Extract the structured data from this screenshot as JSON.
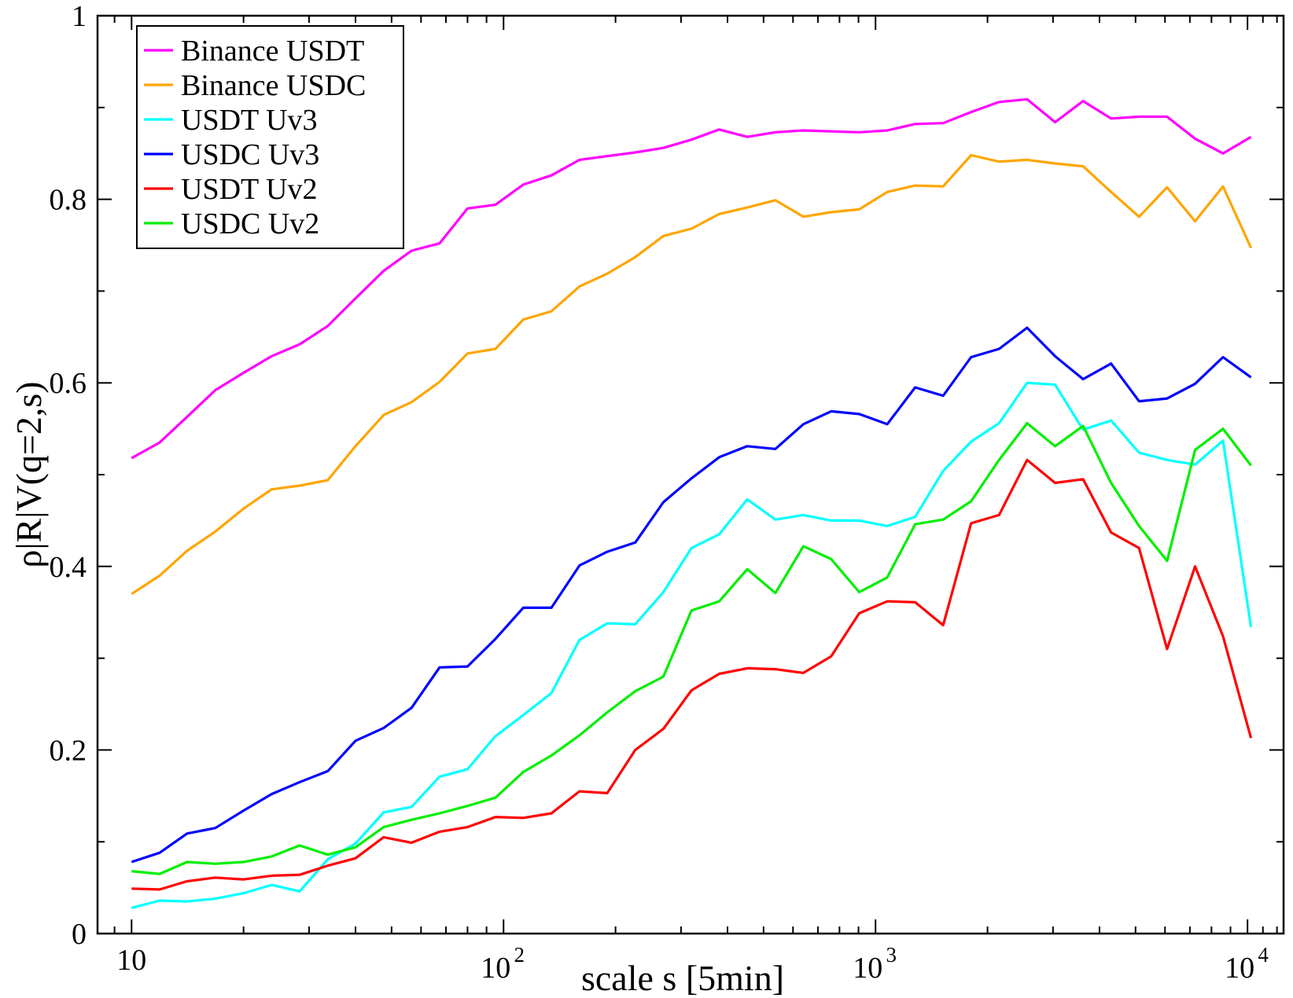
{
  "chart_data": {
    "type": "line",
    "title": "",
    "xlabel": "scale s [5min]",
    "ylabel": "ρ|R|V(q=2,s)",
    "xscale": "log",
    "xlim": [
      8.1,
      12500
    ],
    "ylim": [
      0,
      1
    ],
    "grid": false,
    "legend_position": "top-left",
    "x_ticks": [
      {
        "value": 10,
        "label": "10"
      },
      {
        "value": 100,
        "label": "10",
        "sup": "2"
      },
      {
        "value": 1000,
        "label": "10",
        "sup": "3"
      },
      {
        "value": 10000,
        "label": "10",
        "sup": "4"
      }
    ],
    "y_ticks": [
      {
        "value": 0,
        "label": "0"
      },
      {
        "value": 0.2,
        "label": "0.2"
      },
      {
        "value": 0.4,
        "label": "0.4"
      },
      {
        "value": 0.6,
        "label": "0.6"
      },
      {
        "value": 0.8,
        "label": "0.8"
      },
      {
        "value": 1,
        "label": "1"
      }
    ],
    "x": [
      10,
      11.9,
      14.1,
      16.8,
      20,
      23.8,
      28.3,
      33.7,
      40,
      47.6,
      56.6,
      67.3,
      80,
      95.1,
      113,
      134.5,
      160,
      190,
      226,
      269,
      320,
      380,
      452,
      538,
      640,
      760,
      904,
      1075,
      1278,
      1520,
      1807,
      2149,
      2555,
      3039,
      3614,
      4297,
      5110,
      6077,
      7227,
      8594,
      10220
    ],
    "series": [
      {
        "name": "Binance USDT",
        "color": "#ff00ff",
        "values": [
          0.518,
          0.535,
          0.563,
          0.592,
          0.611,
          0.629,
          0.642,
          0.662,
          0.692,
          0.722,
          0.744,
          0.752,
          0.79,
          0.794,
          0.816,
          0.826,
          0.843,
          0.847,
          0.851,
          0.856,
          0.865,
          0.876,
          0.868,
          0.873,
          0.875,
          0.874,
          0.873,
          0.875,
          0.882,
          0.883,
          0.895,
          0.906,
          0.909,
          0.884,
          0.907,
          0.888,
          0.89,
          0.89,
          0.866,
          0.85,
          0.868
        ]
      },
      {
        "name": "Binance USDC",
        "color": "#ffa500",
        "values": [
          0.37,
          0.39,
          0.417,
          0.438,
          0.463,
          0.484,
          0.488,
          0.494,
          0.531,
          0.565,
          0.579,
          0.601,
          0.632,
          0.637,
          0.669,
          0.678,
          0.705,
          0.719,
          0.737,
          0.76,
          0.768,
          0.784,
          0.791,
          0.799,
          0.781,
          0.786,
          0.789,
          0.808,
          0.815,
          0.814,
          0.848,
          0.841,
          0.843,
          0.839,
          0.836,
          0.808,
          0.781,
          0.813,
          0.776,
          0.814,
          0.747
        ]
      },
      {
        "name": "USDT Uv3",
        "color": "#00ffff",
        "values": [
          0.028,
          0.036,
          0.035,
          0.038,
          0.044,
          0.053,
          0.046,
          0.081,
          0.098,
          0.132,
          0.138,
          0.171,
          0.179,
          0.215,
          0.238,
          0.262,
          0.32,
          0.338,
          0.337,
          0.372,
          0.42,
          0.435,
          0.473,
          0.451,
          0.456,
          0.45,
          0.45,
          0.444,
          0.454,
          0.504,
          0.536,
          0.556,
          0.6,
          0.598,
          0.549,
          0.559,
          0.524,
          0.516,
          0.511,
          0.537,
          0.334
        ]
      },
      {
        "name": "USDC Uv3",
        "color": "#0000ff",
        "values": [
          0.078,
          0.088,
          0.109,
          0.115,
          0.134,
          0.152,
          0.165,
          0.177,
          0.21,
          0.224,
          0.246,
          0.29,
          0.291,
          0.321,
          0.355,
          0.355,
          0.401,
          0.416,
          0.426,
          0.47,
          0.496,
          0.519,
          0.531,
          0.528,
          0.555,
          0.569,
          0.566,
          0.555,
          0.595,
          0.586,
          0.628,
          0.637,
          0.66,
          0.629,
          0.604,
          0.621,
          0.58,
          0.583,
          0.599,
          0.628,
          0.606
        ]
      },
      {
        "name": "USDT Uv2",
        "color": "#ff0000",
        "values": [
          0.049,
          0.048,
          0.057,
          0.061,
          0.059,
          0.063,
          0.064,
          0.074,
          0.082,
          0.105,
          0.099,
          0.111,
          0.116,
          0.127,
          0.126,
          0.131,
          0.155,
          0.153,
          0.2,
          0.223,
          0.265,
          0.283,
          0.289,
          0.288,
          0.284,
          0.302,
          0.349,
          0.362,
          0.361,
          0.336,
          0.447,
          0.456,
          0.516,
          0.491,
          0.495,
          0.437,
          0.42,
          0.31,
          0.4,
          0.324,
          0.213
        ]
      },
      {
        "name": "USDC Uv2",
        "color": "#00ee00",
        "values": [
          0.068,
          0.065,
          0.078,
          0.076,
          0.078,
          0.084,
          0.096,
          0.086,
          0.094,
          0.116,
          0.124,
          0.131,
          0.139,
          0.148,
          0.176,
          0.194,
          0.216,
          0.241,
          0.264,
          0.28,
          0.352,
          0.362,
          0.397,
          0.371,
          0.422,
          0.408,
          0.372,
          0.388,
          0.446,
          0.451,
          0.471,
          0.516,
          0.556,
          0.531,
          0.553,
          0.491,
          0.444,
          0.406,
          0.527,
          0.55,
          0.51
        ]
      }
    ]
  }
}
